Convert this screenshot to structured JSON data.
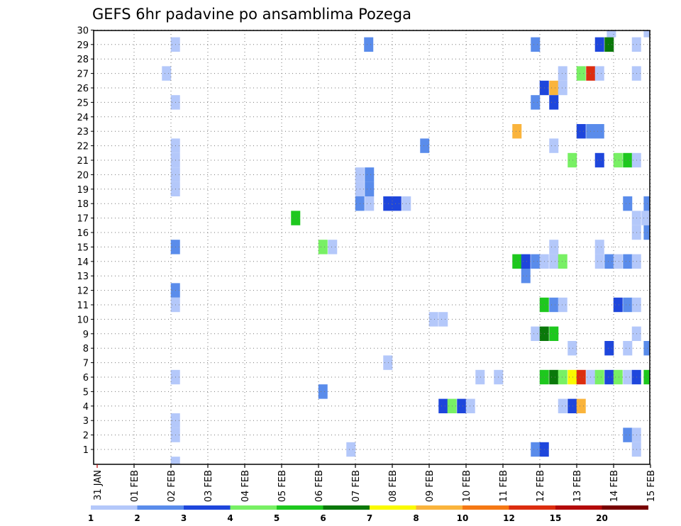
{
  "chart_data": {
    "type": "heatmap",
    "title": "GEFS 6hr padavine po ansamblima Pozega",
    "x_ticks": [
      "31 JAN",
      "01 FEB",
      "02 FEB",
      "03 FEB",
      "04 FEB",
      "05 FEB",
      "06 FEB",
      "07 FEB",
      "08 FEB",
      "09 FEB",
      "10 FEB",
      "11 FEB",
      "12 FEB",
      "13 FEB",
      "14 FEB",
      "15 FEB"
    ],
    "y_ticks": [
      "1",
      "2",
      "3",
      "4",
      "5",
      "6",
      "7",
      "8",
      "9",
      "10",
      "11",
      "12",
      "13",
      "14",
      "15",
      "16",
      "17",
      "18",
      "19",
      "20",
      "21",
      "22",
      "23",
      "24",
      "25",
      "26",
      "27",
      "28",
      "29",
      "30"
    ],
    "grid": true,
    "colorbar": {
      "labels": [
        "1",
        "2",
        "3",
        "4",
        "5",
        "6",
        "7",
        "8",
        "10",
        "12",
        "15",
        "20"
      ],
      "colors": [
        "#b4c8fa",
        "#5a8ceb",
        "#1e46dc",
        "#78f064",
        "#1ec81e",
        "#0a780a",
        "#fafa00",
        "#fab43c",
        "#f57814",
        "#dc2d0f",
        "#b40a0a",
        "#780000"
      ]
    },
    "cells": [
      {
        "m": 30,
        "x": 13.94,
        "v": 1
      },
      {
        "m": 30,
        "x": 14.94,
        "v": 1
      },
      {
        "m": 29,
        "x": 2.12,
        "v": 1
      },
      {
        "m": 29,
        "x": 7.36,
        "v": 2
      },
      {
        "m": 29,
        "x": 11.88,
        "v": 2
      },
      {
        "m": 29,
        "x": 13.62,
        "v": 3
      },
      {
        "m": 29,
        "x": 13.88,
        "v": 6
      },
      {
        "m": 29,
        "x": 14.62,
        "v": 1
      },
      {
        "m": 27,
        "x": 1.88,
        "v": 1
      },
      {
        "m": 27,
        "x": 12.62,
        "v": 1
      },
      {
        "m": 27,
        "x": 13.12,
        "v": 4
      },
      {
        "m": 27,
        "x": 13.38,
        "v": 10
      },
      {
        "m": 27,
        "x": 13.62,
        "v": 1
      },
      {
        "m": 27,
        "x": 14.62,
        "v": 1
      },
      {
        "m": 26,
        "x": 12.12,
        "v": 3
      },
      {
        "m": 26,
        "x": 12.38,
        "v": 8
      },
      {
        "m": 26,
        "x": 12.62,
        "v": 1
      },
      {
        "m": 25,
        "x": 2.12,
        "v": 1
      },
      {
        "m": 25,
        "x": 11.88,
        "v": 2
      },
      {
        "m": 25,
        "x": 12.38,
        "v": 3
      },
      {
        "m": 23,
        "x": 11.38,
        "v": 8
      },
      {
        "m": 23,
        "x": 13.12,
        "v": 3
      },
      {
        "m": 23,
        "x": 13.38,
        "v": 2
      },
      {
        "m": 23,
        "x": 13.62,
        "v": 2
      },
      {
        "m": 22,
        "x": 2.12,
        "v": 1
      },
      {
        "m": 22,
        "x": 8.88,
        "v": 2
      },
      {
        "m": 22,
        "x": 12.38,
        "v": 1
      },
      {
        "m": 21,
        "x": 2.12,
        "v": 1
      },
      {
        "m": 21,
        "x": 12.88,
        "v": 4
      },
      {
        "m": 21,
        "x": 13.62,
        "v": 3
      },
      {
        "m": 21,
        "x": 14.12,
        "v": 4
      },
      {
        "m": 21,
        "x": 14.38,
        "v": 5
      },
      {
        "m": 21,
        "x": 14.62,
        "v": 1
      },
      {
        "m": 20,
        "x": 2.12,
        "v": 1
      },
      {
        "m": 20,
        "x": 7.12,
        "v": 1
      },
      {
        "m": 20,
        "x": 7.38,
        "v": 2
      },
      {
        "m": 19,
        "x": 2.12,
        "v": 1
      },
      {
        "m": 19,
        "x": 7.12,
        "v": 1
      },
      {
        "m": 19,
        "x": 7.38,
        "v": 2
      },
      {
        "m": 18,
        "x": 7.12,
        "v": 2
      },
      {
        "m": 18,
        "x": 7.38,
        "v": 1
      },
      {
        "m": 18,
        "x": 7.88,
        "v": 3
      },
      {
        "m": 18,
        "x": 8.12,
        "v": 3
      },
      {
        "m": 18,
        "x": 8.38,
        "v": 1
      },
      {
        "m": 18,
        "x": 14.38,
        "v": 2
      },
      {
        "m": 18,
        "x": 14.94,
        "v": 2
      },
      {
        "m": 17,
        "x": 5.38,
        "v": 5
      },
      {
        "m": 17,
        "x": 14.62,
        "v": 1
      },
      {
        "m": 17,
        "x": 14.88,
        "v": 1
      },
      {
        "m": 16,
        "x": 14.62,
        "v": 1
      },
      {
        "m": 16,
        "x": 14.94,
        "v": 2
      },
      {
        "m": 15,
        "x": 2.12,
        "v": 2
      },
      {
        "m": 15,
        "x": 6.12,
        "v": 4
      },
      {
        "m": 15,
        "x": 6.38,
        "v": 1
      },
      {
        "m": 15,
        "x": 12.38,
        "v": 1
      },
      {
        "m": 15,
        "x": 13.62,
        "v": 1
      },
      {
        "m": 14,
        "x": 11.38,
        "v": 5
      },
      {
        "m": 14,
        "x": 11.62,
        "v": 3
      },
      {
        "m": 14,
        "x": 11.88,
        "v": 2
      },
      {
        "m": 14,
        "x": 12.12,
        "v": 1
      },
      {
        "m": 14,
        "x": 12.38,
        "v": 1
      },
      {
        "m": 14,
        "x": 12.62,
        "v": 4
      },
      {
        "m": 14,
        "x": 13.62,
        "v": 1
      },
      {
        "m": 14,
        "x": 13.88,
        "v": 2
      },
      {
        "m": 14,
        "x": 14.12,
        "v": 1
      },
      {
        "m": 14,
        "x": 14.38,
        "v": 2
      },
      {
        "m": 14,
        "x": 14.62,
        "v": 1
      },
      {
        "m": 13,
        "x": 11.62,
        "v": 2
      },
      {
        "m": 12,
        "x": 2.12,
        "v": 2
      },
      {
        "m": 11,
        "x": 2.12,
        "v": 1
      },
      {
        "m": 11,
        "x": 12.12,
        "v": 5
      },
      {
        "m": 11,
        "x": 12.38,
        "v": 2
      },
      {
        "m": 11,
        "x": 12.62,
        "v": 1
      },
      {
        "m": 11,
        "x": 14.12,
        "v": 3
      },
      {
        "m": 11,
        "x": 14.38,
        "v": 2
      },
      {
        "m": 11,
        "x": 14.62,
        "v": 1
      },
      {
        "m": 10,
        "x": 9.12,
        "v": 1
      },
      {
        "m": 10,
        "x": 9.38,
        "v": 1
      },
      {
        "m": 9,
        "x": 11.88,
        "v": 1
      },
      {
        "m": 9,
        "x": 12.12,
        "v": 6
      },
      {
        "m": 9,
        "x": 12.38,
        "v": 5
      },
      {
        "m": 9,
        "x": 14.62,
        "v": 1
      },
      {
        "m": 8,
        "x": 12.88,
        "v": 1
      },
      {
        "m": 8,
        "x": 13.88,
        "v": 3
      },
      {
        "m": 8,
        "x": 14.38,
        "v": 1
      },
      {
        "m": 8,
        "x": 14.94,
        "v": 2
      },
      {
        "m": 7,
        "x": 7.88,
        "v": 1
      },
      {
        "m": 6,
        "x": 2.12,
        "v": 1
      },
      {
        "m": 6,
        "x": 10.38,
        "v": 1
      },
      {
        "m": 6,
        "x": 10.88,
        "v": 1
      },
      {
        "m": 6,
        "x": 12.12,
        "v": 5
      },
      {
        "m": 6,
        "x": 12.38,
        "v": 6
      },
      {
        "m": 6,
        "x": 12.62,
        "v": 4
      },
      {
        "m": 6,
        "x": 12.88,
        "v": 7
      },
      {
        "m": 6,
        "x": 13.12,
        "v": 10
      },
      {
        "m": 6,
        "x": 13.38,
        "v": 1
      },
      {
        "m": 6,
        "x": 13.62,
        "v": 4
      },
      {
        "m": 6,
        "x": 13.88,
        "v": 3
      },
      {
        "m": 6,
        "x": 14.12,
        "v": 4
      },
      {
        "m": 6,
        "x": 14.38,
        "v": 1
      },
      {
        "m": 6,
        "x": 14.62,
        "v": 3
      },
      {
        "m": 6,
        "x": 14.94,
        "v": 5
      },
      {
        "m": 5,
        "x": 6.12,
        "v": 2
      },
      {
        "m": 4,
        "x": 9.38,
        "v": 3
      },
      {
        "m": 4,
        "x": 9.62,
        "v": 4
      },
      {
        "m": 4,
        "x": 9.88,
        "v": 3
      },
      {
        "m": 4,
        "x": 10.12,
        "v": 1
      },
      {
        "m": 4,
        "x": 12.62,
        "v": 1
      },
      {
        "m": 4,
        "x": 12.88,
        "v": 3
      },
      {
        "m": 4,
        "x": 13.12,
        "v": 8
      },
      {
        "m": 3,
        "x": 2.12,
        "v": 1
      },
      {
        "m": 2,
        "x": 2.12,
        "v": 1
      },
      {
        "m": 2,
        "x": 14.38,
        "v": 2
      },
      {
        "m": 2,
        "x": 14.62,
        "v": 1
      },
      {
        "m": 1,
        "x": 6.88,
        "v": 1
      },
      {
        "m": 1,
        "x": 11.88,
        "v": 2
      },
      {
        "m": 1,
        "x": 12.12,
        "v": 3
      },
      {
        "m": 1,
        "x": 14.62,
        "v": 1
      },
      {
        "m": 0,
        "x": 2.12,
        "v": 1
      }
    ]
  }
}
